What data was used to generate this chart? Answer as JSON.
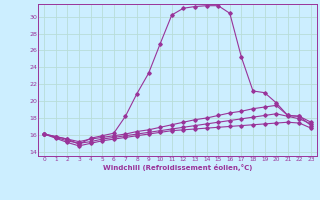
{
  "xlabel": "Windchill (Refroidissement éolien,°C)",
  "background_color": "#cceeff",
  "grid_color": "#aaddcc",
  "line_color": "#993399",
  "xlim": [
    -0.5,
    23.5
  ],
  "ylim": [
    13.5,
    31.5
  ],
  "yticks": [
    14,
    16,
    18,
    20,
    22,
    24,
    26,
    28,
    30
  ],
  "xticks": [
    0,
    1,
    2,
    3,
    4,
    5,
    6,
    7,
    8,
    9,
    10,
    11,
    12,
    13,
    14,
    15,
    16,
    17,
    18,
    19,
    20,
    21,
    22,
    23
  ],
  "line1": [
    16.1,
    15.8,
    15.5,
    14.9,
    15.6,
    15.9,
    16.2,
    18.2,
    20.9,
    23.3,
    26.8,
    30.2,
    31.0,
    31.2,
    31.3,
    31.3,
    30.4,
    25.2,
    21.2,
    21.0,
    19.8,
    18.3,
    18.2,
    17.1
  ],
  "line2": [
    16.1,
    15.8,
    15.5,
    15.2,
    15.5,
    15.7,
    15.9,
    16.1,
    16.4,
    16.6,
    16.9,
    17.2,
    17.5,
    17.8,
    18.0,
    18.3,
    18.6,
    18.8,
    19.1,
    19.3,
    19.5,
    18.3,
    18.2,
    17.5
  ],
  "line3": [
    16.1,
    15.7,
    15.3,
    15.0,
    15.2,
    15.5,
    15.7,
    15.9,
    16.1,
    16.3,
    16.5,
    16.7,
    16.9,
    17.1,
    17.3,
    17.5,
    17.7,
    17.9,
    18.1,
    18.3,
    18.5,
    18.2,
    17.9,
    17.3
  ],
  "line4": [
    16.1,
    15.6,
    15.1,
    14.7,
    15.0,
    15.3,
    15.5,
    15.7,
    15.9,
    16.1,
    16.3,
    16.5,
    16.6,
    16.7,
    16.8,
    16.9,
    17.0,
    17.1,
    17.2,
    17.3,
    17.4,
    17.5,
    17.4,
    16.8
  ]
}
